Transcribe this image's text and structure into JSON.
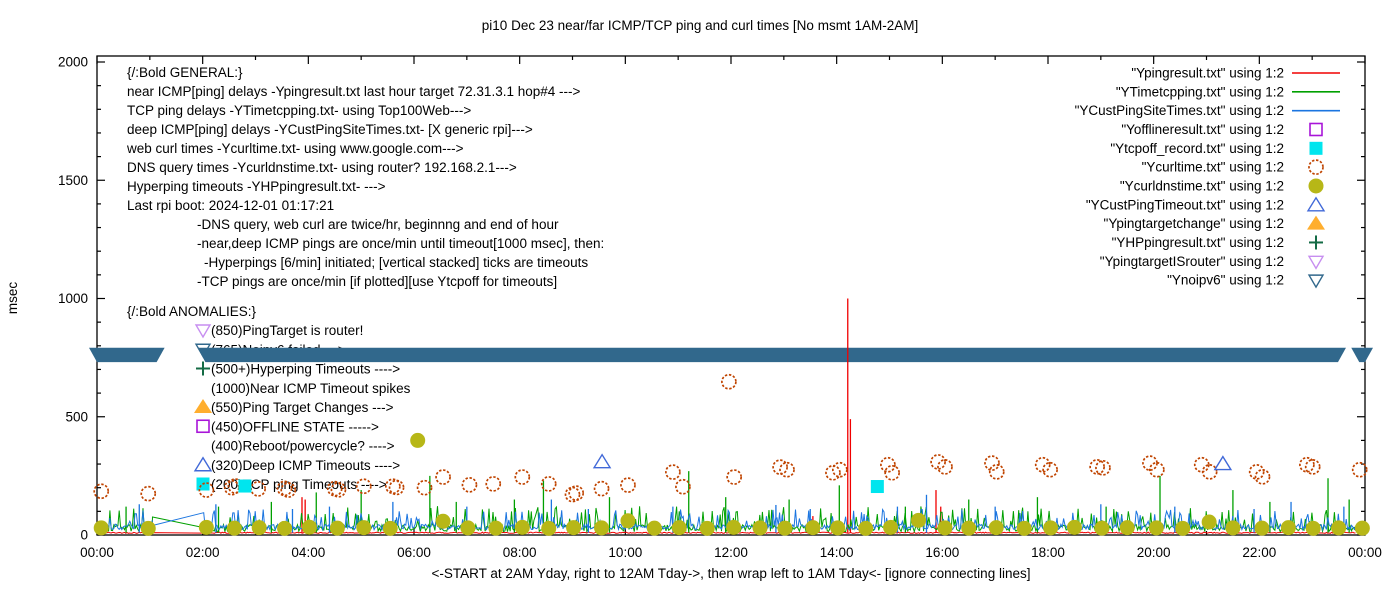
{
  "title": "pi10 Dec 23  near/far ICMP/TCP ping and curl times [No msmt 1AM-2AM]",
  "xlabel": "<-START at 2AM Yday, right to 12AM Tday->, then wrap left to 1AM Tday<- [ignore connecting lines]",
  "ylabel": "msec",
  "chart_data": {
    "type": "line",
    "x_axis": {
      "tick_labels": [
        "00:00",
        "02:00",
        "04:00",
        "06:00",
        "08:00",
        "10:00",
        "12:00",
        "14:00",
        "16:00",
        "18:00",
        "20:00",
        "22:00",
        "00:00"
      ],
      "tick_hours": [
        0,
        2,
        4,
        6,
        8,
        10,
        12,
        14,
        16,
        18,
        20,
        22,
        24
      ],
      "minor_every_hours": 1,
      "range_hours": [
        0,
        24
      ]
    },
    "y_axis": {
      "tick_labels": [
        "0",
        "500",
        "1000",
        "1500",
        "2000"
      ],
      "tick_values": [
        0,
        500,
        1000,
        1500,
        2000
      ],
      "minor_every": 100,
      "range": [
        0,
        2000
      ]
    },
    "legend": [
      {
        "label": "\"Ypingresult.txt\" using 1:2",
        "marker": "line",
        "color": "#f00000"
      },
      {
        "label": "\"YTimetcpping.txt\" using 1:2",
        "marker": "line",
        "color": "#00a000"
      },
      {
        "label": "\"YCustPingSiteTimes.txt\" using 1:2",
        "marker": "line",
        "color": "#1b75e0"
      },
      {
        "label": "\"Yofflineresult.txt\" using 1:2",
        "marker": "square-open",
        "color": "#a815d8"
      },
      {
        "label": "\"Ytcpoff_record.txt\" using 1:2",
        "marker": "square-filled",
        "color": "#00e5ee"
      },
      {
        "label": "\"Ycurltime.txt\" using 1:2",
        "marker": "circle-open",
        "color": "#c04400"
      },
      {
        "label": "\"Ycurldnstime.txt\" using 1:2",
        "marker": "circle-filled",
        "color": "#b7b717"
      },
      {
        "label": "\"YCustPingTimeout.txt\" using 1:2",
        "marker": "triangle-open",
        "color": "#4169d8"
      },
      {
        "label": "\"Ypingtargetchange\" using 1:2",
        "marker": "triangle-filled",
        "color": "#ffae2e"
      },
      {
        "label": "\"YHPpingresult.txt\" using 1:2",
        "marker": "plus",
        "color": "#146b45"
      },
      {
        "label": "\"YpingtargetISrouter\" using 1:2",
        "marker": "triangle-down-open",
        "color": "#c78ef0"
      },
      {
        "label": "\"Ynoipv6\" using 1:2",
        "marker": "triangle-down-open",
        "color": "#31688c"
      }
    ],
    "annotations": {
      "general": {
        "lines": [
          {
            "x": 127,
            "text": "{/:Bold GENERAL:}"
          },
          {
            "x": 127,
            "text": "near ICMP[ping] delays -Ypingresult.txt last hour target 72.31.3.1 hop#4 --->"
          },
          {
            "x": 127,
            "text": "TCP ping delays -YTimetcpping.txt- using Top100Web--->"
          },
          {
            "x": 127,
            "text": "deep ICMP[ping] delays -YCustPingSiteTimes.txt- [X generic rpi]--->"
          },
          {
            "x": 127,
            "text": "web curl times -Ycurltime.txt- using www.google.com--->"
          },
          {
            "x": 127,
            "text": "DNS query times -Ycurldnstime.txt- using router? 192.168.2.1--->"
          },
          {
            "x": 127,
            "text": "Hyperping timeouts -YHPpingresult.txt- --->"
          },
          {
            "x": 127,
            "text": "Last rpi boot: 2024-12-01 01:17:21"
          },
          {
            "x": 197,
            "text": "-DNS query, web curl are twice/hr, beginnng and end of hour"
          },
          {
            "x": 197,
            "text": "-near,deep ICMP pings are once/min until timeout[1000 msec], then:"
          },
          {
            "x": 204,
            "text": "-Hyperpings [6/min] initiated; [vertical stacked] ticks are timeouts"
          },
          {
            "x": 197,
            "text": "-TCP pings are once/min [if plotted][use Ytcpoff for timeouts]"
          }
        ]
      },
      "anomalies": {
        "heading": "{/:Bold ANOMALIES:}",
        "items": [
          {
            "marker": "triangle-down-open",
            "color": "#c78ef0",
            "text": "(850)PingTarget is router!"
          },
          {
            "marker": "triangle-down-open",
            "color": "#31688c",
            "text": "(765)Noipv6 failed --->"
          },
          {
            "marker": "plus",
            "color": "#146b45",
            "text": "(500+)Hyperping Timeouts ---->"
          },
          {
            "marker": "none",
            "color": "",
            "text": "(1000)Near ICMP Timeout spikes"
          },
          {
            "marker": "triangle-filled",
            "color": "#ffae2e",
            "text": "(550)Ping Target Changes --->"
          },
          {
            "marker": "square-open",
            "color": "#a815d8",
            "text": "(450)OFFLINE STATE ----->"
          },
          {
            "marker": "none",
            "color": "",
            "text": "(400)Reboot/powercycle? ---->"
          },
          {
            "marker": "triangle-open",
            "color": "#4169d8",
            "text": "(320)Deep ICMP Timeouts ---->"
          },
          {
            "marker": "square-filled",
            "color": "#00e5ee",
            "text": "(200)TCP ping Timeouts ---->"
          }
        ]
      }
    },
    "no_measurement_gap_hours": [
      1.05,
      2.0
    ],
    "series": {
      "ping_red": {
        "name": "Ypingresult.txt",
        "color": "#f00000",
        "base_msec": 7,
        "noise_amp": 5,
        "spikes": [
          [
            3.88,
            160
          ],
          [
            3.94,
            150
          ],
          [
            13.55,
            80
          ],
          [
            14.21,
            1000
          ],
          [
            14.26,
            490
          ],
          [
            15.88,
            190
          ],
          [
            15.97,
            120
          ]
        ]
      },
      "tcp_green": {
        "name": "YTimetcpping.txt",
        "color": "#00a000",
        "base_msec": 14,
        "noise_amp": 30,
        "gap_anchor_msec": 76,
        "spikes": [
          [
            0.55,
            120
          ],
          [
            2.3,
            120
          ],
          [
            3.3,
            140
          ],
          [
            4.15,
            180
          ],
          [
            5.0,
            190
          ],
          [
            6.3,
            250
          ],
          [
            6.8,
            140
          ],
          [
            7.9,
            150
          ],
          [
            8.45,
            230
          ],
          [
            9.7,
            160
          ],
          [
            11.2,
            270
          ],
          [
            11.9,
            160
          ],
          [
            13.1,
            150
          ],
          [
            14.05,
            210
          ],
          [
            15.3,
            120
          ],
          [
            16.5,
            150
          ],
          [
            17.8,
            160
          ],
          [
            19.1,
            120
          ],
          [
            20.12,
            250
          ],
          [
            21.5,
            190
          ],
          [
            22.2,
            140
          ],
          [
            23.3,
            240
          ],
          [
            23.7,
            150
          ]
        ]
      },
      "deep_blue": {
        "name": "YCustPingSiteTimes.txt",
        "color": "#1b75e0",
        "base_msec": 22,
        "noise_amp": 24,
        "gap_anchor_msec": 40,
        "spikes": [
          [
            0.8,
            130
          ],
          [
            2.25,
            130
          ],
          [
            3.7,
            110
          ],
          [
            4.4,
            120
          ],
          [
            5.6,
            140
          ],
          [
            7.0,
            120
          ],
          [
            8.6,
            150
          ],
          [
            9.3,
            110
          ],
          [
            10.9,
            120
          ],
          [
            12.85,
            127
          ],
          [
            13.5,
            110
          ],
          [
            15.15,
            120
          ],
          [
            15.7,
            170
          ],
          [
            17.0,
            120
          ],
          [
            19.0,
            130
          ],
          [
            20.4,
            120
          ],
          [
            21.9,
            110
          ],
          [
            22.6,
            140
          ],
          [
            23.6,
            120
          ]
        ]
      },
      "curl_circles": {
        "name": "Ycurltime.txt",
        "color": "#c04400",
        "points": [
          [
            0.08,
            185
          ],
          [
            0.97,
            175
          ],
          [
            2.07,
            190
          ],
          [
            2.55,
            200
          ],
          [
            2.62,
            207
          ],
          [
            3.05,
            195
          ],
          [
            3.55,
            197
          ],
          [
            3.62,
            190
          ],
          [
            4.5,
            196
          ],
          [
            4.57,
            191
          ],
          [
            5.05,
            206
          ],
          [
            5.6,
            206
          ],
          [
            5.67,
            201
          ],
          [
            6.2,
            200
          ],
          [
            6.55,
            245
          ],
          [
            7.05,
            212
          ],
          [
            7.5,
            216
          ],
          [
            8.05,
            245
          ],
          [
            8.55,
            216
          ],
          [
            9.0,
            171
          ],
          [
            9.07,
            177
          ],
          [
            9.55,
            196
          ],
          [
            10.05,
            211
          ],
          [
            10.9,
            266
          ],
          [
            11.09,
            204
          ],
          [
            11.96,
            648
          ],
          [
            12.06,
            245
          ],
          [
            12.93,
            287
          ],
          [
            13.06,
            276
          ],
          [
            13.93,
            263
          ],
          [
            14.06,
            276
          ],
          [
            14.97,
            297
          ],
          [
            15.05,
            263
          ],
          [
            15.92,
            309
          ],
          [
            16.05,
            288
          ],
          [
            16.94,
            304
          ],
          [
            17.03,
            267
          ],
          [
            17.9,
            297
          ],
          [
            18.04,
            276
          ],
          [
            18.93,
            288
          ],
          [
            19.04,
            284
          ],
          [
            19.93,
            304
          ],
          [
            20.06,
            276
          ],
          [
            20.91,
            297
          ],
          [
            21.06,
            267
          ],
          [
            21.95,
            267
          ],
          [
            22.06,
            246
          ],
          [
            22.9,
            297
          ],
          [
            23.01,
            288
          ],
          [
            23.9,
            276
          ]
        ]
      },
      "dns_circles": {
        "name": "Ycurldnstime.txt",
        "color": "#b7b717",
        "points": [
          [
            0.08,
            30
          ],
          [
            0.97,
            28
          ],
          [
            2.07,
            32
          ],
          [
            2.6,
            29
          ],
          [
            3.07,
            31
          ],
          [
            3.55,
            28
          ],
          [
            4.02,
            33
          ],
          [
            4.55,
            29
          ],
          [
            5.05,
            31
          ],
          [
            5.55,
            28
          ],
          [
            6.07,
            400
          ],
          [
            6.55,
            58
          ],
          [
            7.02,
            30
          ],
          [
            7.55,
            29
          ],
          [
            8.05,
            32
          ],
          [
            8.55,
            28
          ],
          [
            9.02,
            31
          ],
          [
            9.55,
            30
          ],
          [
            10.05,
            60
          ],
          [
            10.55,
            29
          ],
          [
            11.02,
            31
          ],
          [
            11.55,
            28
          ],
          [
            12.05,
            32
          ],
          [
            12.55,
            30
          ],
          [
            13.02,
            29
          ],
          [
            13.55,
            31
          ],
          [
            14.02,
            30
          ],
          [
            14.55,
            28
          ],
          [
            15.02,
            32
          ],
          [
            15.55,
            62
          ],
          [
            16.05,
            30
          ],
          [
            16.5,
            29
          ],
          [
            17.02,
            31
          ],
          [
            17.55,
            28
          ],
          [
            18.05,
            30
          ],
          [
            18.5,
            32
          ],
          [
            19.02,
            29
          ],
          [
            19.5,
            31
          ],
          [
            20.05,
            30
          ],
          [
            20.55,
            28
          ],
          [
            21.05,
            55
          ],
          [
            21.5,
            30
          ],
          [
            22.05,
            29
          ],
          [
            22.55,
            31
          ],
          [
            23.02,
            28
          ],
          [
            23.5,
            30
          ],
          [
            23.95,
            29
          ]
        ]
      },
      "tcp_timeout_squares": {
        "name": "Ytcpoff_record.txt",
        "color": "#00e5ee",
        "points": [
          [
            2.8,
            207
          ],
          [
            14.77,
            205
          ]
        ]
      },
      "deep_timeout_triangles": {
        "name": "YCustPingTimeout.txt",
        "color": "#4169d8",
        "points": [
          [
            9.56,
            310
          ],
          [
            21.31,
            302
          ]
        ]
      },
      "noipv6_band": {
        "name": "Ynoipv6",
        "color": "#31688c",
        "top_msec": 792,
        "bottom_msec": 731,
        "segments_hours": [
          [
            0,
            1.28
          ],
          [
            1.9,
            23.64
          ],
          [
            23.74,
            24
          ]
        ]
      }
    },
    "noise_seed": 42
  }
}
